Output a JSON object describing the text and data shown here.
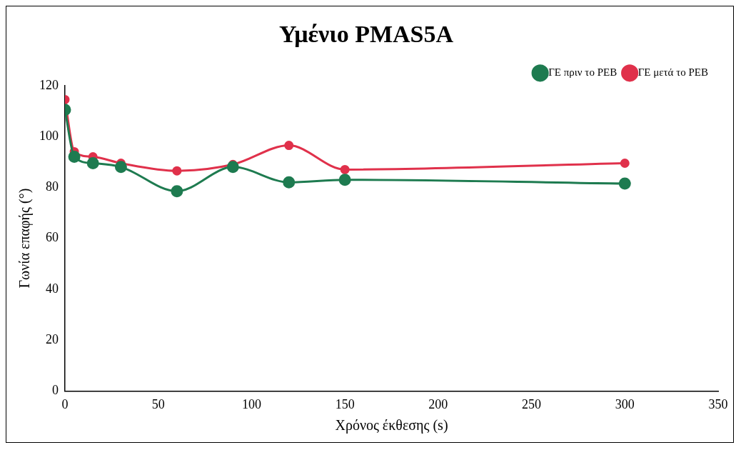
{
  "chart_data": {
    "type": "line",
    "title": "Υμένιο PMAS5A",
    "xlabel": "Χρόνος έκθεσης (s)",
    "ylabel": "Γωνία επαφής (°)",
    "x": [
      0,
      5,
      15,
      30,
      60,
      90,
      120,
      150,
      300
    ],
    "series": [
      {
        "name": "ΓΕ μετά το PEB",
        "color": "#e0314b",
        "values": [
          114.5,
          94,
          92,
          89.5,
          86.5,
          89,
          96.5,
          87,
          89.5
        ]
      },
      {
        "name": "ΓΕ πριν το PEB",
        "color": "#1e7b50",
        "values": [
          110.5,
          92,
          89.5,
          88,
          78.5,
          88,
          82,
          83,
          81.5
        ]
      }
    ],
    "xlim": [
      0,
      350
    ],
    "xticks": [
      0,
      50,
      100,
      150,
      200,
      250,
      300,
      350
    ],
    "ylim": [
      0,
      120
    ],
    "yticks": [
      0,
      20,
      40,
      60,
      80,
      100,
      120
    ],
    "grid": false,
    "legend": "top right",
    "marker": "circle",
    "line_style": "solid"
  }
}
